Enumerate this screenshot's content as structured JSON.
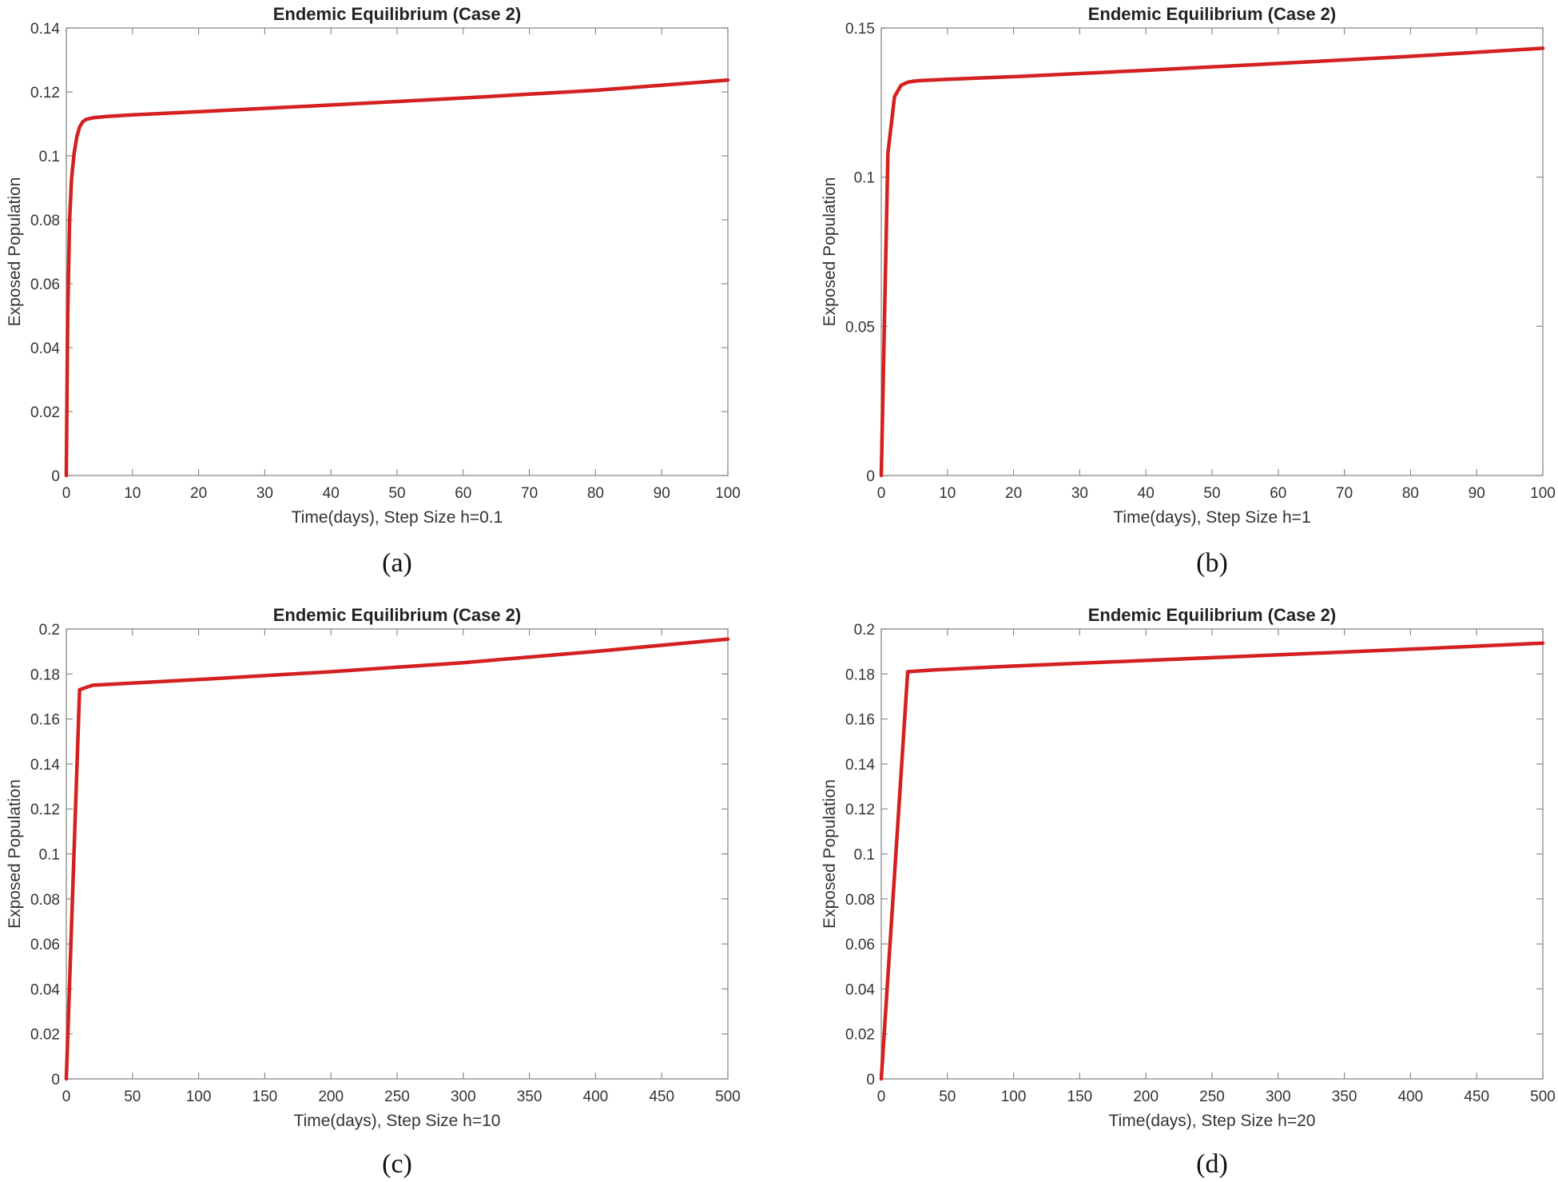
{
  "chart_data": [
    {
      "type": "line",
      "title": "Endemic Equilibrium (Case 2)",
      "xlabel": "Time(days), Step Size h=0.1",
      "ylabel": "Exposed Population",
      "caption": "(a)",
      "xlim": [
        0,
        100
      ],
      "ylim": [
        0,
        0.14
      ],
      "xticks": [
        0,
        10,
        20,
        30,
        40,
        50,
        60,
        70,
        80,
        90,
        100
      ],
      "xtick_labels": [
        "0",
        "10",
        "20",
        "30",
        "40",
        "50",
        "60",
        "70",
        "80",
        "90",
        "100"
      ],
      "yticks": [
        0,
        0.02,
        0.04,
        0.06,
        0.08,
        0.1,
        0.12,
        0.14
      ],
      "ytick_labels": [
        "0",
        "0.02",
        "0.04",
        "0.06",
        "0.08",
        "0.1",
        "0.12",
        "0.14"
      ],
      "line_color": "#d42020",
      "series": [
        {
          "x": [
            0,
            0.2,
            0.5,
            0.8,
            1.2,
            1.6,
            2,
            2.5,
            3,
            4,
            6,
            10,
            20,
            40,
            60,
            80,
            100
          ],
          "values": [
            0,
            0.05,
            0.08,
            0.093,
            0.101,
            0.106,
            0.109,
            0.1107,
            0.1114,
            0.1119,
            0.1123,
            0.1128,
            0.1138,
            0.1159,
            0.1181,
            0.1205,
            0.1237
          ]
        }
      ]
    },
    {
      "type": "line",
      "title": "Endemic Equilibrium (Case 2)",
      "xlabel": "Time(days), Step Size h=1",
      "ylabel": "Exposed Population",
      "caption": "(b)",
      "xlim": [
        0,
        100
      ],
      "ylim": [
        0,
        0.15
      ],
      "xticks": [
        0,
        10,
        20,
        30,
        40,
        50,
        60,
        70,
        80,
        90,
        100
      ],
      "xtick_labels": [
        "0",
        "10",
        "20",
        "30",
        "40",
        "50",
        "60",
        "70",
        "80",
        "90",
        "100"
      ],
      "yticks": [
        0,
        0.05,
        0.1,
        0.15
      ],
      "ytick_labels": [
        "0",
        "0.05",
        "0.1",
        "0.15"
      ],
      "line_color": "#d42020",
      "series": [
        {
          "x": [
            0,
            1,
            2,
            3,
            4,
            5,
            6,
            10,
            20,
            40,
            60,
            80,
            100
          ],
          "values": [
            0,
            0.108,
            0.127,
            0.1308,
            0.1318,
            0.1322,
            0.1324,
            0.1328,
            0.1337,
            0.1358,
            0.1381,
            0.1405,
            0.1432
          ]
        }
      ]
    },
    {
      "type": "line",
      "title": "Endemic Equilibrium (Case 2)",
      "xlabel": "Time(days), Step Size h=10",
      "ylabel": "Exposed Population",
      "caption": "(c)",
      "xlim": [
        0,
        500
      ],
      "ylim": [
        0,
        0.2
      ],
      "xticks": [
        0,
        50,
        100,
        150,
        200,
        250,
        300,
        350,
        400,
        450,
        500
      ],
      "xtick_labels": [
        "0",
        "50",
        "100",
        "150",
        "200",
        "250",
        "300",
        "350",
        "400",
        "450",
        "500"
      ],
      "yticks": [
        0,
        0.02,
        0.04,
        0.06,
        0.08,
        0.1,
        0.12,
        0.14,
        0.16,
        0.18,
        0.2
      ],
      "ytick_labels": [
        "0",
        "0.02",
        "0.04",
        "0.06",
        "0.08",
        "0.1",
        "0.12",
        "0.14",
        "0.16",
        "0.18",
        "0.2"
      ],
      "line_color": "#d42020",
      "series": [
        {
          "x": [
            0,
            10,
            20,
            30,
            100,
            200,
            300,
            400,
            500
          ],
          "values": [
            0,
            0.173,
            0.175,
            0.1753,
            0.1775,
            0.181,
            0.185,
            0.19,
            0.1955
          ]
        }
      ]
    },
    {
      "type": "line",
      "title": "Endemic Equilibrium (Case 2)",
      "xlabel": "Time(days), Step Size h=20",
      "ylabel": "Exposed Population",
      "caption": "(d)",
      "xlim": [
        0,
        500
      ],
      "ylim": [
        0,
        0.2
      ],
      "xticks": [
        0,
        50,
        100,
        150,
        200,
        250,
        300,
        350,
        400,
        450,
        500
      ],
      "xtick_labels": [
        "0",
        "50",
        "100",
        "150",
        "200",
        "250",
        "300",
        "350",
        "400",
        "450",
        "500"
      ],
      "yticks": [
        0,
        0.02,
        0.04,
        0.06,
        0.08,
        0.1,
        0.12,
        0.14,
        0.16,
        0.18,
        0.2
      ],
      "ytick_labels": [
        "0",
        "0.02",
        "0.04",
        "0.06",
        "0.08",
        "0.1",
        "0.12",
        "0.14",
        "0.16",
        "0.18",
        "0.2"
      ],
      "line_color": "#d42020",
      "series": [
        {
          "x": [
            0,
            20,
            40,
            100,
            200,
            300,
            400,
            500
          ],
          "values": [
            0,
            0.181,
            0.1818,
            0.1835,
            0.186,
            0.1885,
            0.191,
            0.1937
          ]
        }
      ]
    }
  ]
}
